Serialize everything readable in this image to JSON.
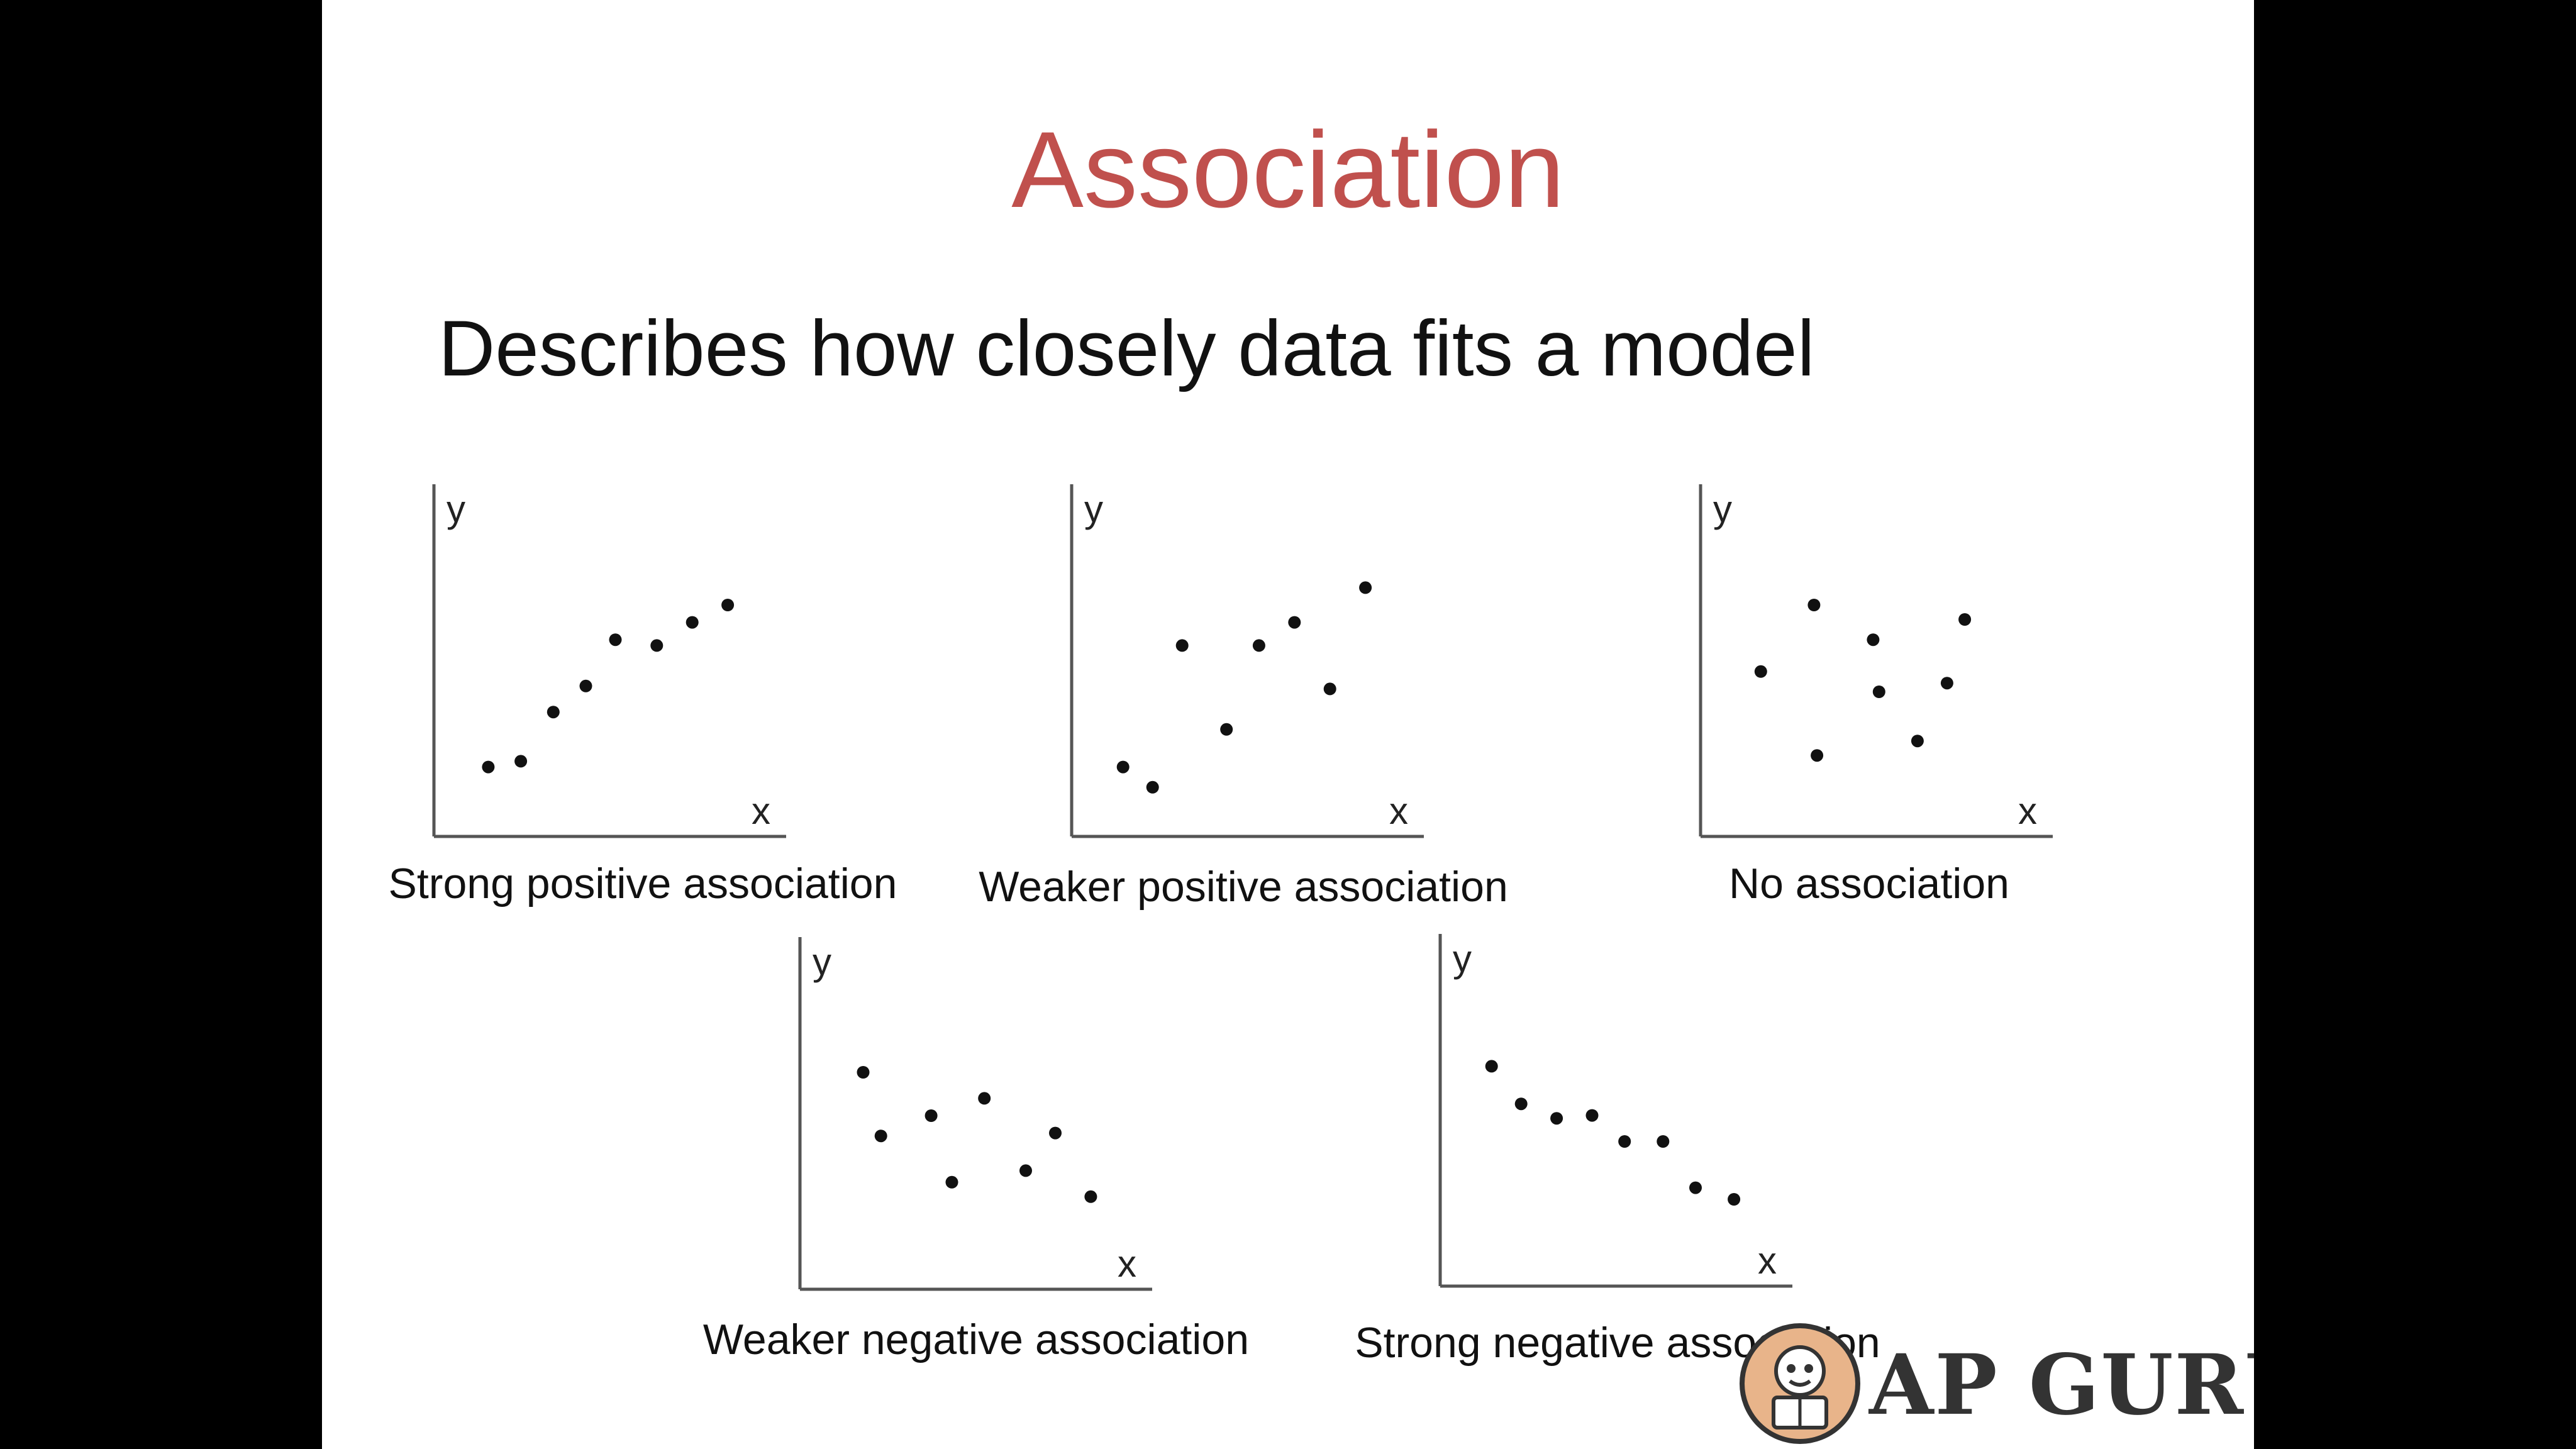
{
  "slide": {
    "title": "Association",
    "subtitle": "Describes how closely data fits a model"
  },
  "logo": {
    "text": "AP GURU"
  },
  "colors": {
    "title": "#c0504d",
    "text": "#111111",
    "axis": "#555555",
    "point": "#111111"
  },
  "chart_data": [
    {
      "type": "scatter",
      "title": "Strong positive association",
      "xlabel": "x",
      "ylabel": "y",
      "xlim": [
        0,
        10
      ],
      "ylim": [
        0,
        10
      ],
      "x": [
        1.2,
        2.3,
        3.4,
        4.5,
        5.5,
        6.9,
        8.1,
        9.3
      ],
      "y": [
        2.4,
        2.6,
        4.3,
        5.2,
        6.8,
        6.6,
        7.4,
        8.0
      ]
    },
    {
      "type": "scatter",
      "title": "Weaker positive association",
      "xlabel": "x",
      "ylabel": "y",
      "xlim": [
        0,
        10
      ],
      "ylim": [
        0,
        10
      ],
      "x": [
        1.1,
        2.1,
        3.1,
        4.6,
        5.7,
        6.9,
        8.1,
        9.3
      ],
      "y": [
        2.4,
        1.7,
        6.6,
        3.7,
        6.6,
        7.4,
        5.1,
        8.6
      ]
    },
    {
      "type": "scatter",
      "title": "No association",
      "xlabel": "x",
      "ylabel": "y",
      "xlim": [
        0,
        10
      ],
      "ylim": [
        0,
        10
      ],
      "x": [
        1.4,
        3.2,
        3.3,
        5.2,
        5.4,
        6.7,
        7.7,
        8.3
      ],
      "y": [
        5.7,
        8.0,
        2.8,
        6.8,
        5.0,
        3.3,
        5.3,
        7.5
      ]
    },
    {
      "type": "scatter",
      "title": "Weaker negative association",
      "xlabel": "x",
      "ylabel": "y",
      "xlim": [
        0,
        10
      ],
      "ylim": [
        0,
        10
      ],
      "x": [
        1.5,
        2.1,
        3.8,
        4.5,
        5.6,
        7.0,
        8.0,
        9.2
      ],
      "y": [
        7.5,
        5.3,
        6.0,
        3.7,
        6.6,
        4.1,
        5.4,
        3.2
      ]
    },
    {
      "type": "scatter",
      "title": "Strong negative association",
      "xlabel": "x",
      "ylabel": "y",
      "xlim": [
        0,
        10
      ],
      "ylim": [
        0,
        10
      ],
      "x": [
        1.1,
        2.1,
        3.3,
        4.5,
        5.6,
        6.9,
        8.0,
        9.3
      ],
      "y": [
        7.6,
        6.3,
        5.8,
        5.9,
        5.0,
        5.0,
        3.4,
        3.0
      ]
    }
  ]
}
